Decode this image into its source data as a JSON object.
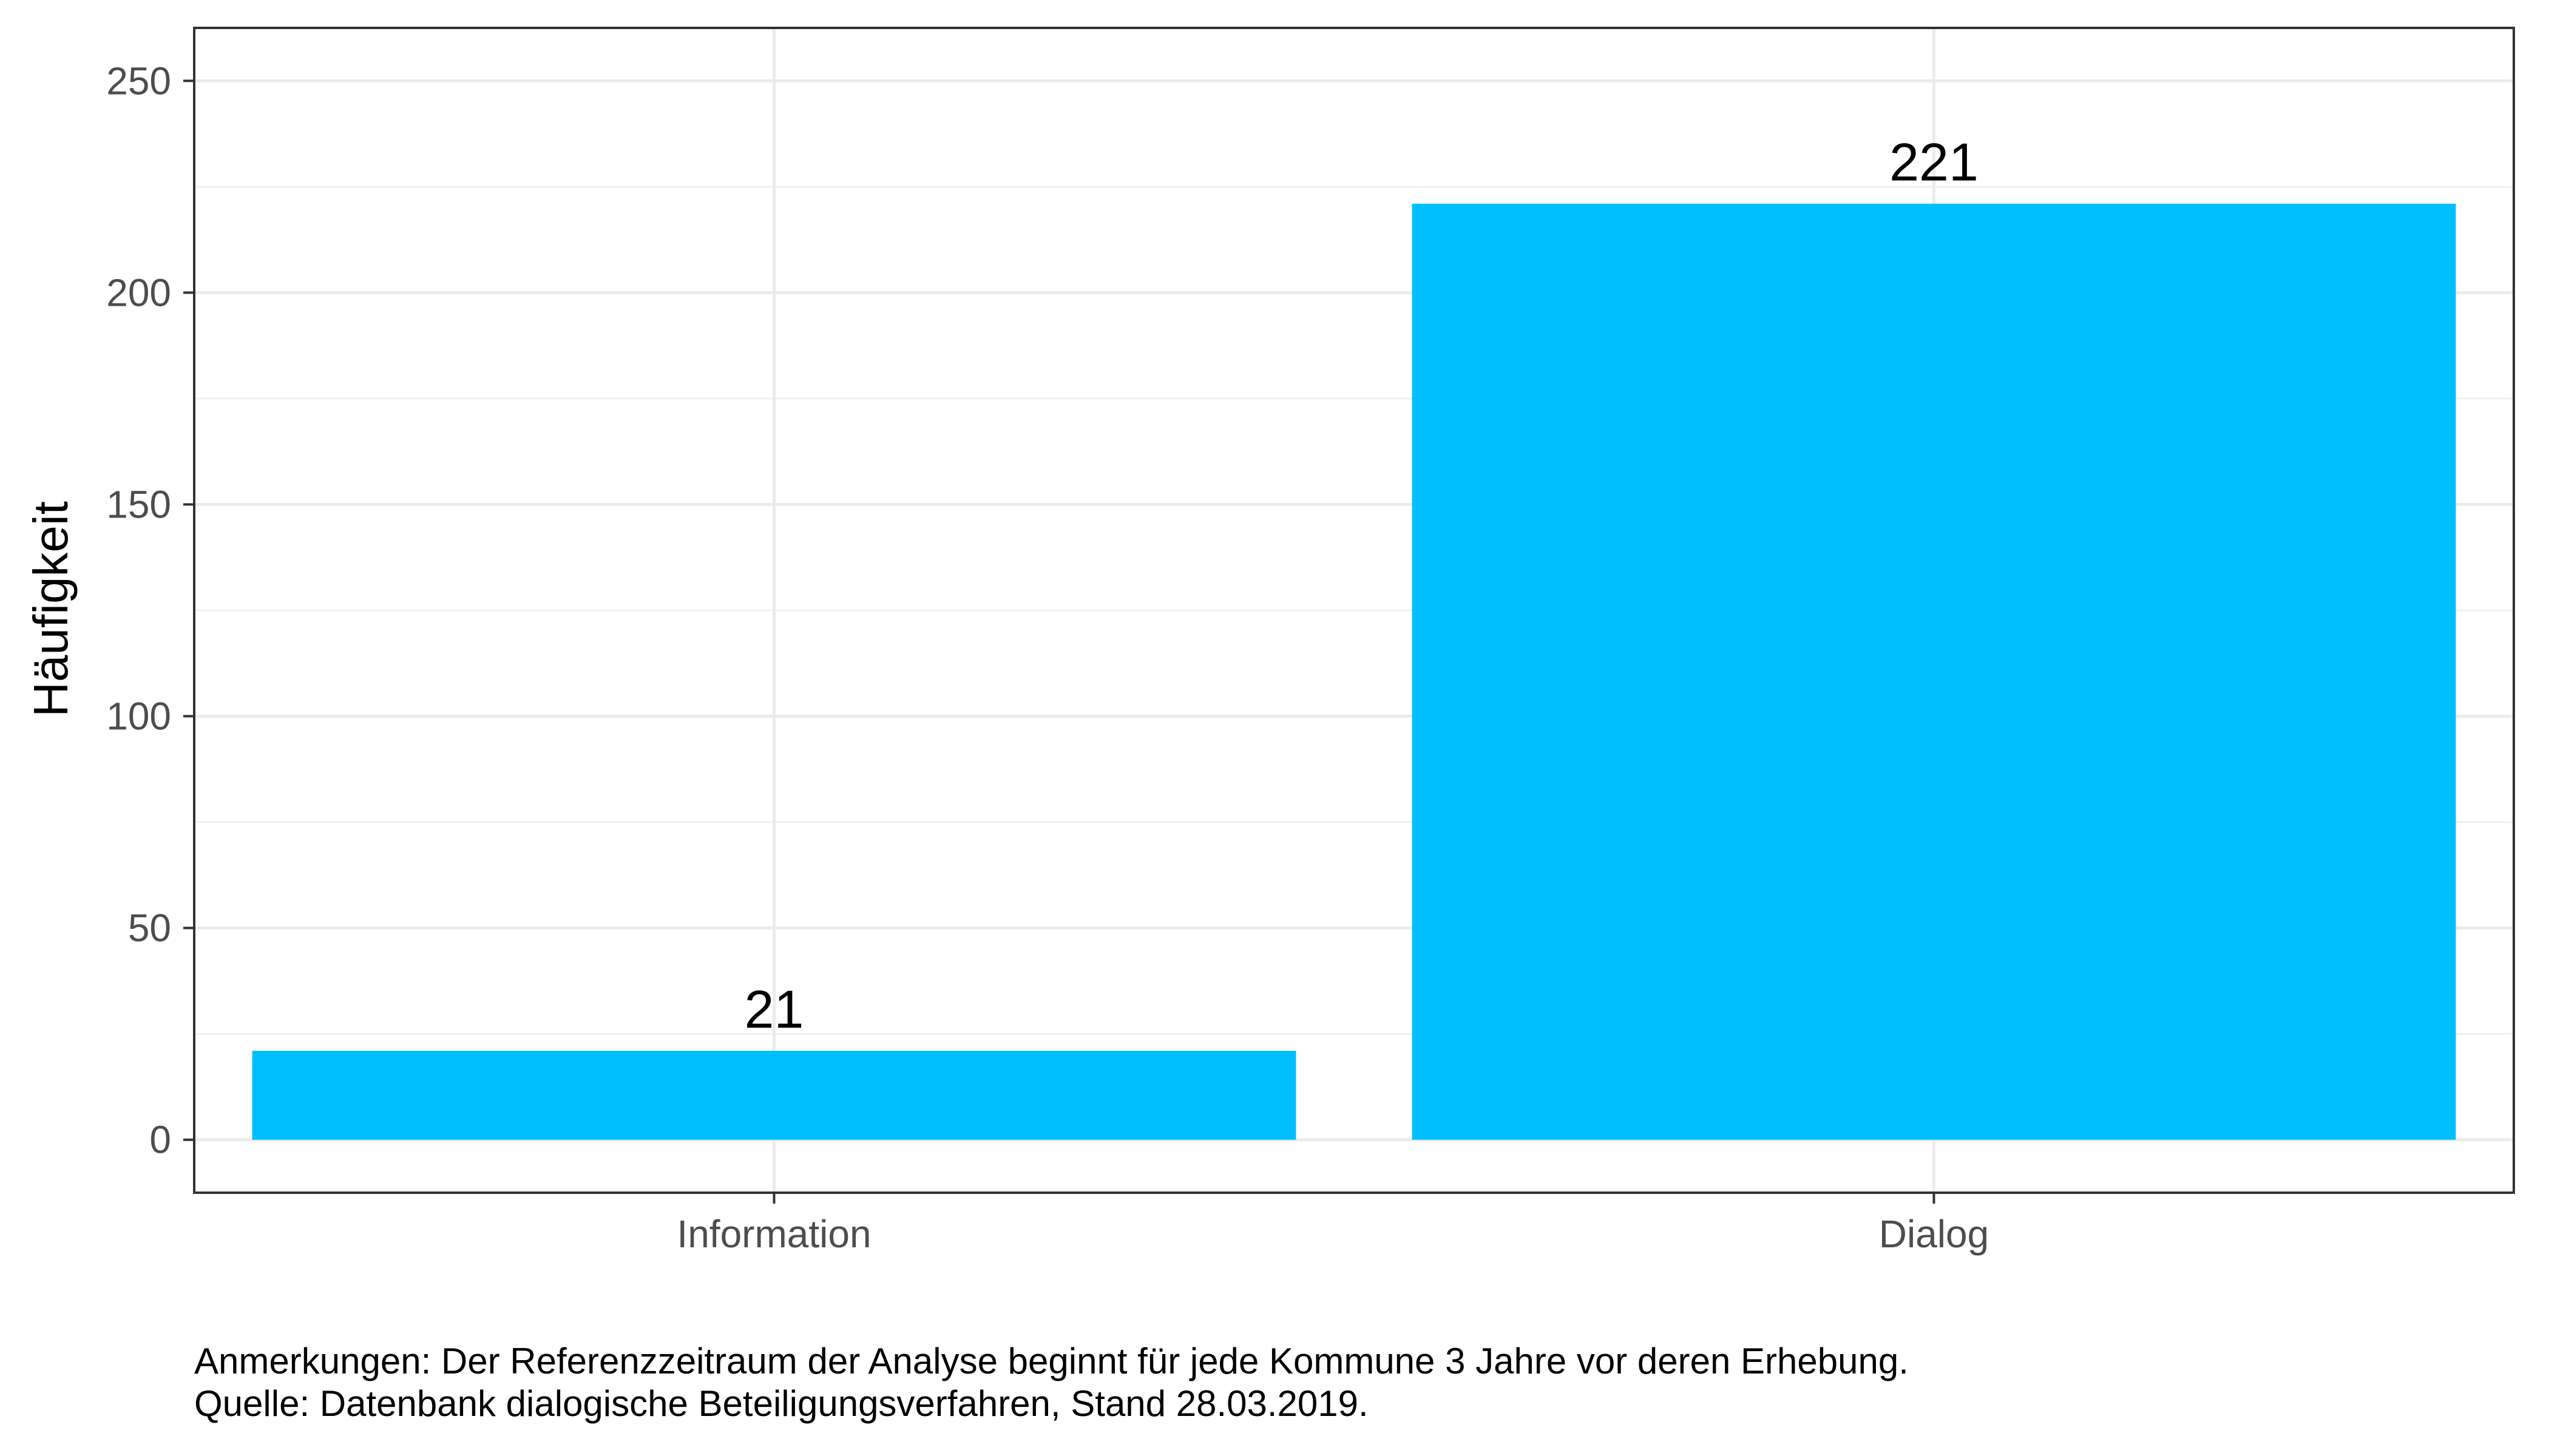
{
  "chart_data": {
    "type": "bar",
    "categories": [
      "Information",
      "Dialog"
    ],
    "values": [
      21,
      221
    ],
    "data_labels": [
      "21",
      "221"
    ],
    "ylabel": "Häufigkeit",
    "xlabel": "",
    "ylim": [
      -12.5,
      262.5
    ],
    "yticks": [
      0,
      50,
      100,
      150,
      200,
      250
    ],
    "ytick_labels": [
      "0",
      "50",
      "100",
      "150",
      "200",
      "250"
    ],
    "bar_color": "#00BFFF",
    "grid": true,
    "legend": "none"
  },
  "notes": {
    "remark": "Anmerkungen: Der Referenzzeitraum der Analyse beginnt für jede Kommune 3 Jahre vor deren Erhebung.",
    "source": "Quelle: Datenbank dialogische Beteiligungsverfahren, Stand 28.03.2019."
  }
}
